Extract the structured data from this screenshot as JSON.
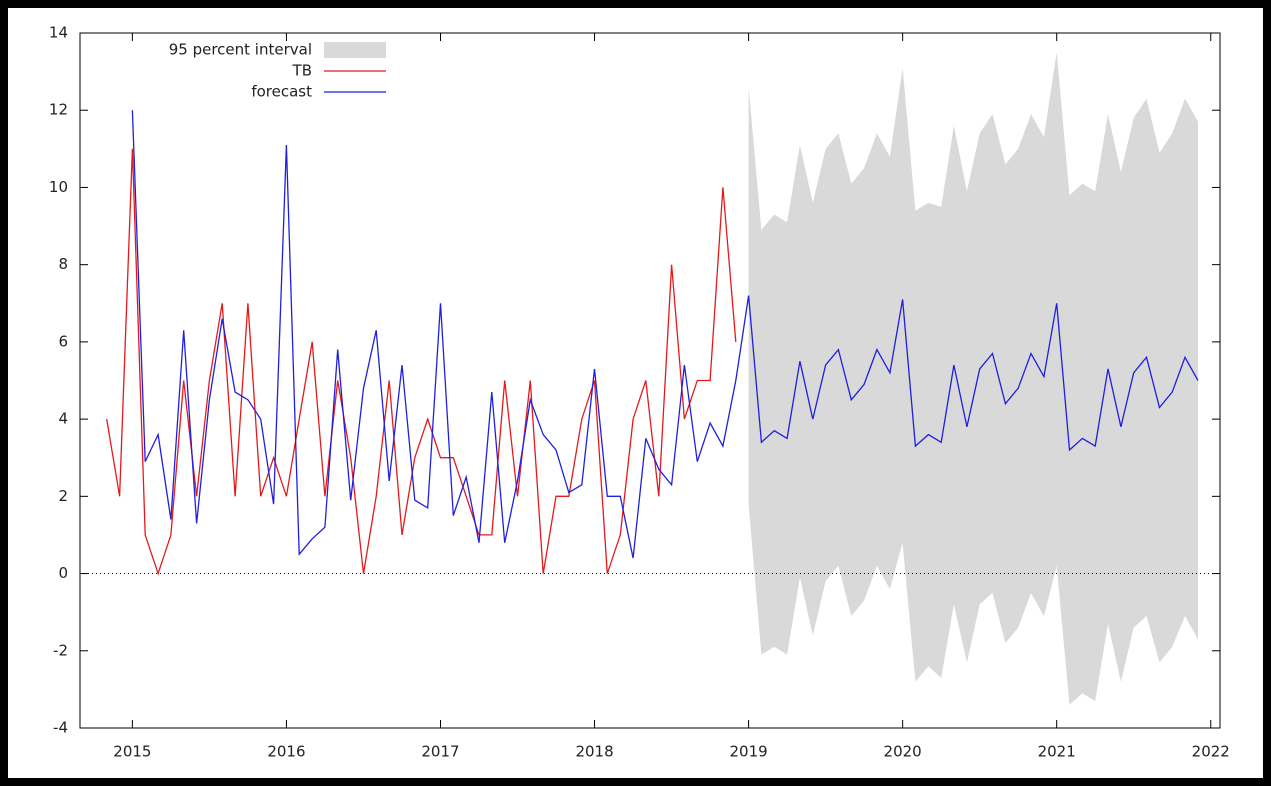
{
  "chart_data": {
    "type": "line",
    "x": [
      2014.833,
      2014.917,
      2015,
      2015.083,
      2015.167,
      2015.25,
      2015.333,
      2015.417,
      2015.5,
      2015.583,
      2015.667,
      2015.75,
      2015.833,
      2015.917,
      2016,
      2016.083,
      2016.167,
      2016.25,
      2016.333,
      2016.417,
      2016.5,
      2016.583,
      2016.667,
      2016.75,
      2016.833,
      2016.917,
      2017,
      2017.083,
      2017.167,
      2017.25,
      2017.333,
      2017.417,
      2017.5,
      2017.583,
      2017.667,
      2017.75,
      2017.833,
      2017.917,
      2018,
      2018.083,
      2018.167,
      2018.25,
      2018.333,
      2018.417,
      2018.5,
      2018.583,
      2018.667,
      2018.75,
      2018.833,
      2018.917,
      2019,
      2019.083,
      2019.167,
      2019.25,
      2019.333,
      2019.417,
      2019.5,
      2019.583,
      2019.667,
      2019.75,
      2019.833,
      2019.917,
      2020,
      2020.083,
      2020.167,
      2020.25,
      2020.333,
      2020.417,
      2020.5,
      2020.583,
      2020.667,
      2020.75,
      2020.833,
      2020.917,
      2021,
      2021.083,
      2021.167,
      2021.25,
      2021.333,
      2021.417,
      2021.5,
      2021.583,
      2021.667,
      2021.75,
      2021.833,
      2021.917
    ],
    "band": {
      "name": "95 percent interval",
      "color": "#d9d9d9",
      "upper": [
        null,
        null,
        null,
        null,
        null,
        null,
        null,
        null,
        null,
        null,
        null,
        null,
        null,
        null,
        null,
        null,
        null,
        null,
        null,
        null,
        null,
        null,
        null,
        null,
        null,
        null,
        null,
        null,
        null,
        null,
        null,
        null,
        null,
        null,
        null,
        null,
        null,
        null,
        null,
        null,
        null,
        null,
        null,
        null,
        null,
        null,
        null,
        null,
        null,
        null,
        12.6,
        8.9,
        9.3,
        9.1,
        11.1,
        9.6,
        11.0,
        11.4,
        10.1,
        10.5,
        11.4,
        10.8,
        13.1,
        9.4,
        9.6,
        9.5,
        11.6,
        9.9,
        11.4,
        11.9,
        10.6,
        11.0,
        11.9,
        11.3,
        13.5,
        9.8,
        10.1,
        9.9,
        11.9,
        10.4,
        11.8,
        12.3,
        10.9,
        11.4,
        12.3,
        11.7
      ],
      "lower": [
        null,
        null,
        null,
        null,
        null,
        null,
        null,
        null,
        null,
        null,
        null,
        null,
        null,
        null,
        null,
        null,
        null,
        null,
        null,
        null,
        null,
        null,
        null,
        null,
        null,
        null,
        null,
        null,
        null,
        null,
        null,
        null,
        null,
        null,
        null,
        null,
        null,
        null,
        null,
        null,
        null,
        null,
        null,
        null,
        null,
        null,
        null,
        null,
        null,
        null,
        1.8,
        -2.1,
        -1.9,
        -2.1,
        -0.1,
        -1.6,
        -0.2,
        0.2,
        -1.1,
        -0.7,
        0.2,
        -0.4,
        0.8,
        -2.8,
        -2.4,
        -2.7,
        -0.8,
        -2.3,
        -0.8,
        -0.5,
        -1.8,
        -1.4,
        -0.5,
        -1.1,
        0.2,
        -3.4,
        -3.1,
        -3.3,
        -1.3,
        -2.8,
        -1.4,
        -1.1,
        -2.3,
        -1.9,
        -1.1,
        -1.7
      ]
    },
    "series": [
      {
        "name": "TB",
        "color": "#e31a1c",
        "values": [
          4,
          2,
          11,
          1,
          0,
          1,
          5,
          2,
          5,
          7,
          2,
          7,
          2,
          3,
          2,
          4,
          6,
          2,
          5,
          3,
          0,
          2,
          5,
          1,
          3,
          4,
          3,
          3,
          2,
          1,
          1,
          5,
          2,
          5,
          0,
          2,
          2,
          4,
          5,
          0,
          1,
          4,
          5,
          2,
          8,
          4,
          5,
          5,
          10,
          6,
          null,
          null,
          null,
          null,
          null,
          null,
          null,
          null,
          null,
          null,
          null,
          null,
          null,
          null,
          null,
          null,
          null,
          null,
          null,
          null,
          null,
          null,
          null,
          null,
          null,
          null,
          null,
          null,
          null,
          null,
          null,
          null,
          null,
          null,
          null,
          null
        ]
      },
      {
        "name": "forecast",
        "color": "#1f1fe0",
        "values": [
          null,
          null,
          12,
          2.9,
          3.6,
          1.4,
          6.3,
          1.3,
          4.5,
          6.6,
          4.7,
          4.5,
          4.0,
          1.8,
          11.1,
          0.5,
          0.9,
          1.2,
          5.8,
          1.9,
          4.8,
          6.3,
          2.4,
          5.4,
          1.9,
          1.7,
          7.0,
          1.5,
          2.5,
          0.8,
          4.7,
          0.8,
          2.4,
          4.5,
          3.6,
          3.2,
          2.1,
          2.3,
          5.3,
          2.0,
          2.0,
          0.4,
          3.5,
          2.7,
          2.3,
          5.4,
          2.9,
          3.9,
          3.3,
          5.0,
          7.2,
          3.4,
          3.7,
          3.5,
          5.5,
          4.0,
          5.4,
          5.8,
          4.5,
          4.9,
          5.8,
          5.2,
          7.1,
          3.3,
          3.6,
          3.4,
          5.4,
          3.8,
          5.3,
          5.7,
          4.4,
          4.8,
          5.7,
          5.1,
          7.0,
          3.2,
          3.5,
          3.3,
          5.3,
          3.8,
          5.2,
          5.6,
          4.3,
          4.7,
          5.6,
          5.0
        ]
      }
    ],
    "xlim": [
      2014.66,
      2022.06
    ],
    "xticks": [
      2015,
      2016,
      2017,
      2018,
      2019,
      2020,
      2021,
      2022
    ],
    "ylim": [
      -4,
      14
    ],
    "yticks": [
      -4,
      -2,
      0,
      2,
      4,
      6,
      8,
      10,
      12,
      14
    ],
    "zero_line": true,
    "legend": "top-left"
  }
}
